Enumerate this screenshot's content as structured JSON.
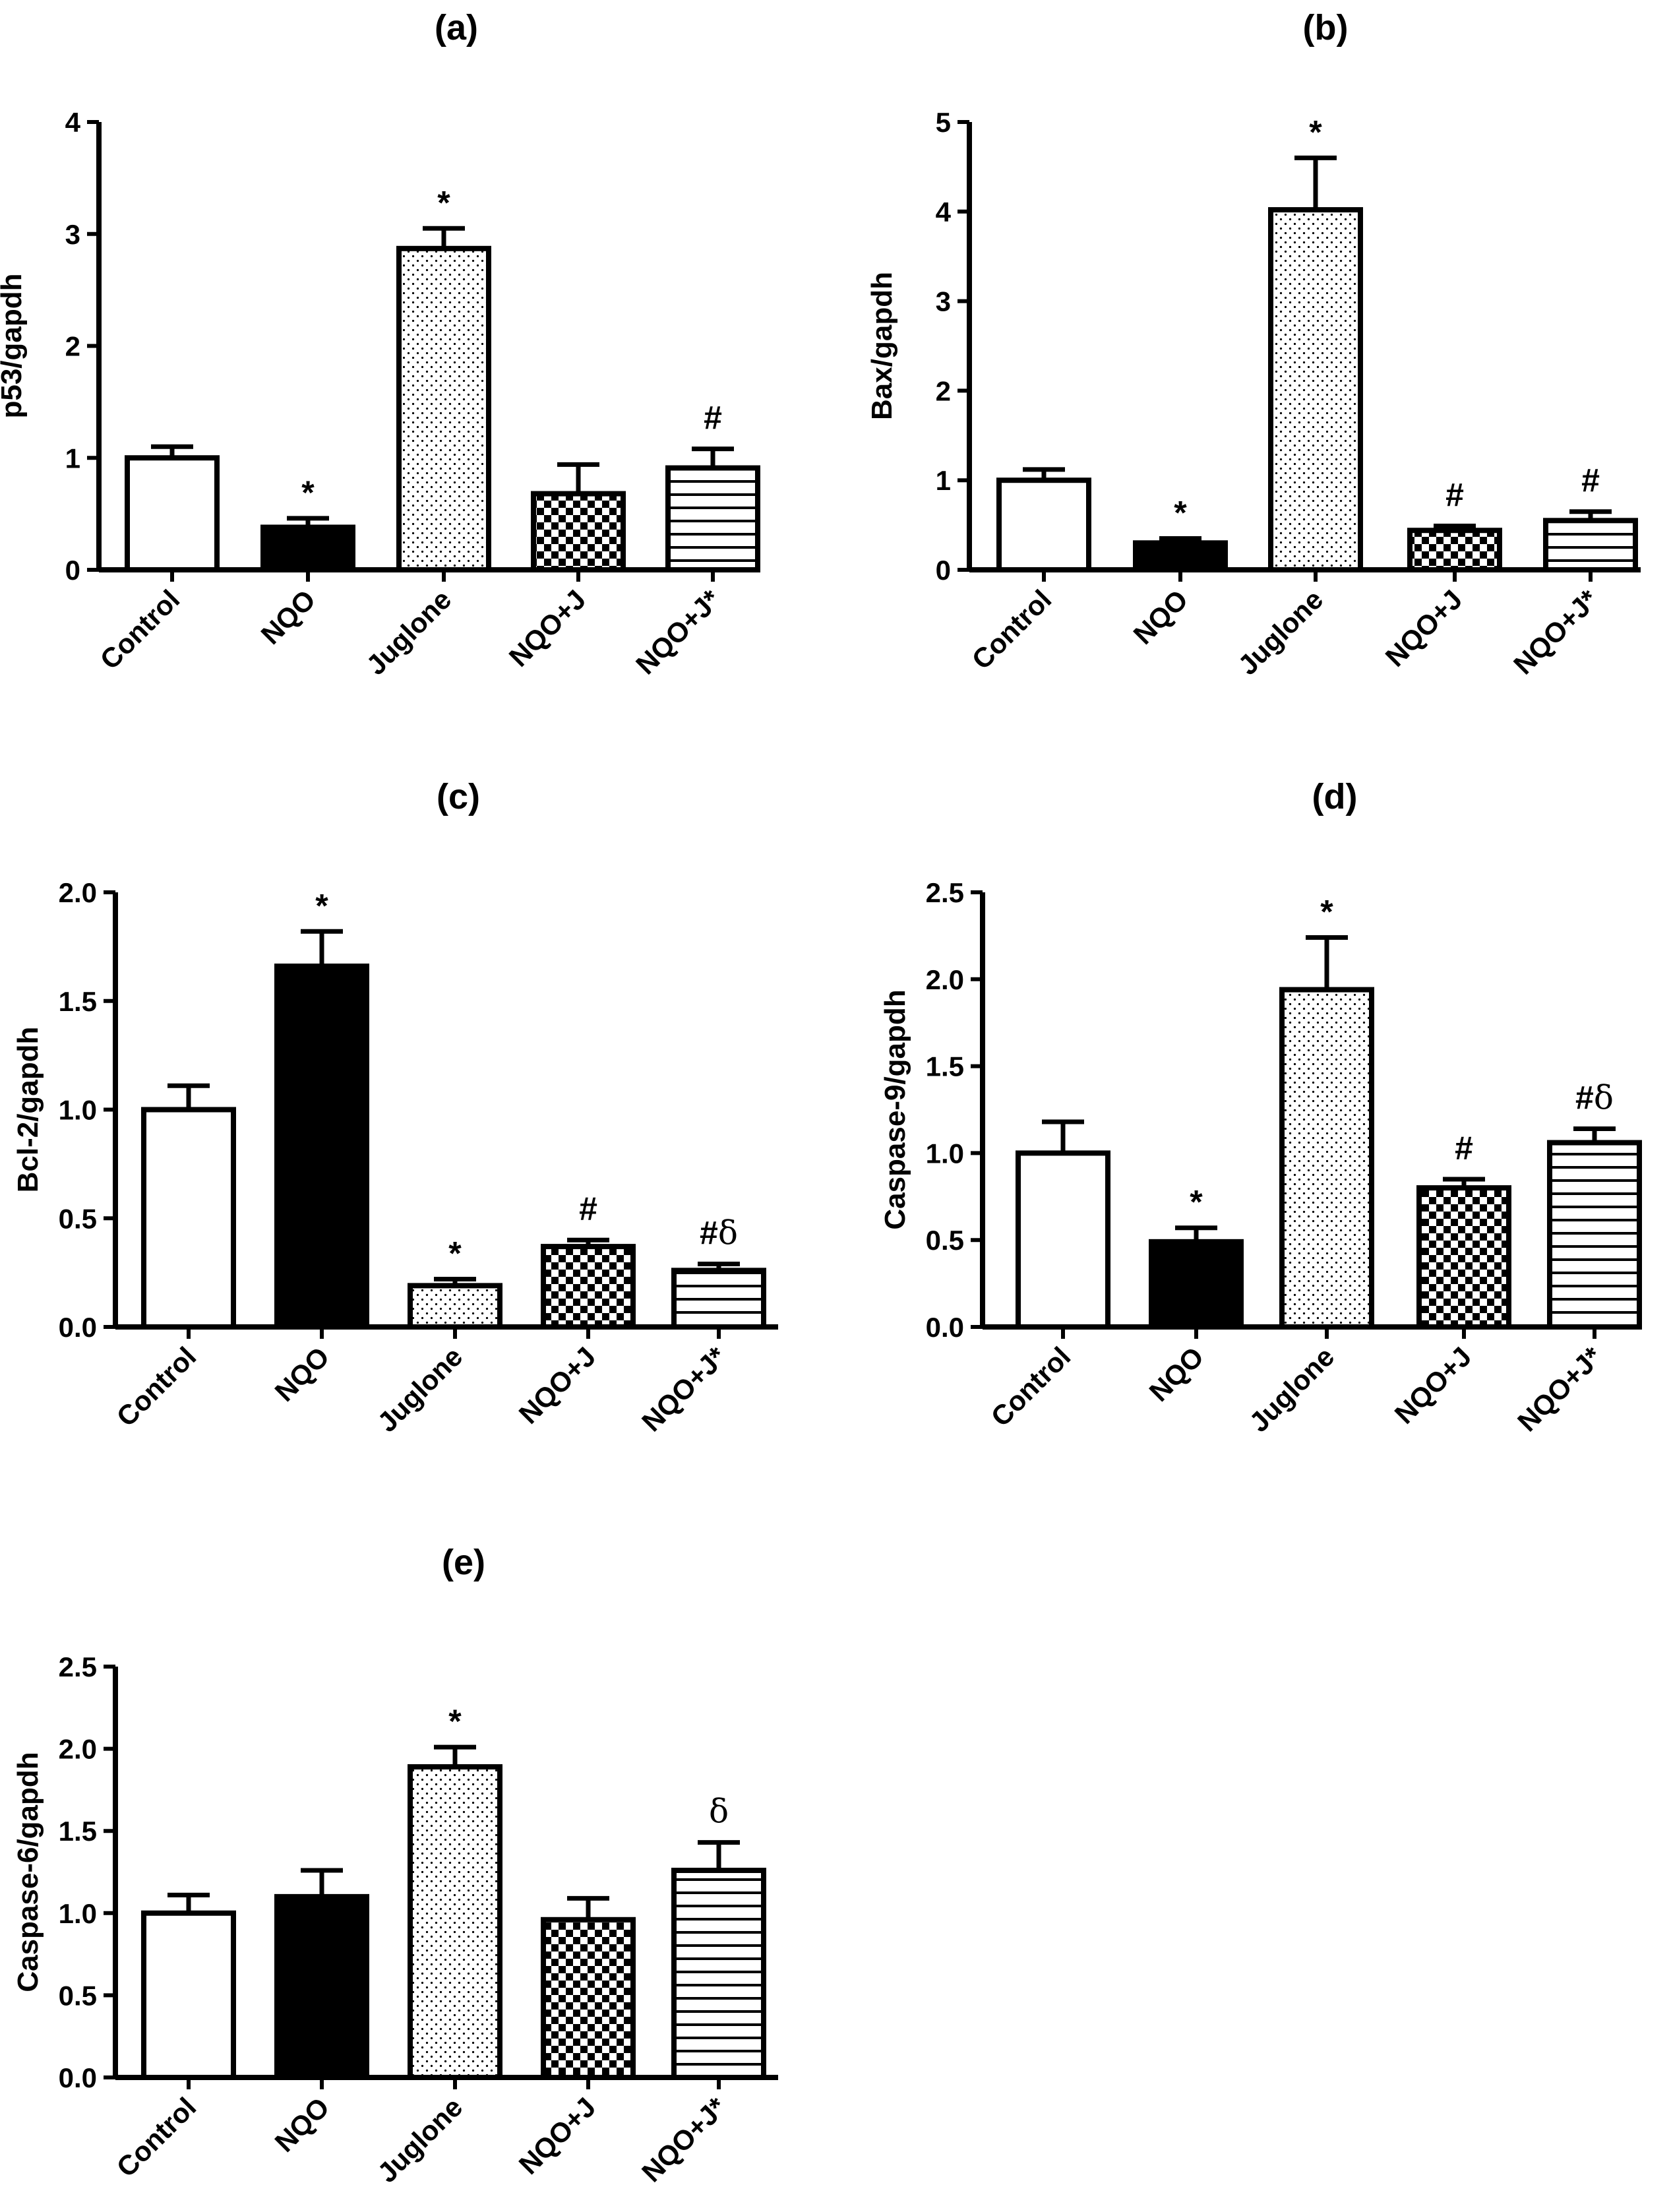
{
  "categories": [
    "Control",
    "NQO",
    "Juglone",
    "NQO+J",
    "NQO+J*"
  ],
  "chart_data": [
    {
      "type": "bar",
      "panel": "(a)",
      "title": "(a)",
      "ylabel": "p53/gapdh",
      "ylim": [
        0,
        4
      ],
      "yticks": [
        "0",
        "1",
        "2",
        "3",
        "4"
      ],
      "categories": [
        "Control",
        "NQO",
        "Juglone",
        "NQO+J",
        "NQO+J*"
      ],
      "values": [
        1.0,
        0.38,
        2.87,
        0.68,
        0.91
      ],
      "errors": [
        0.1,
        0.08,
        0.18,
        0.26,
        0.17
      ],
      "annotations": [
        "",
        "*",
        "*",
        "",
        "#"
      ]
    },
    {
      "type": "bar",
      "panel": "(b)",
      "title": "(b)",
      "ylabel": "Bax/gapdh",
      "ylim": [
        0,
        5
      ],
      "yticks": [
        "0",
        "1",
        "2",
        "3",
        "4",
        "5"
      ],
      "categories": [
        "Control",
        "NQO",
        "Juglone",
        "NQO+J",
        "NQO+J*"
      ],
      "values": [
        1.0,
        0.3,
        4.02,
        0.44,
        0.55
      ],
      "errors": [
        0.12,
        0.05,
        0.58,
        0.05,
        0.1
      ],
      "annotations": [
        "",
        "*",
        "*",
        "#",
        "#"
      ]
    },
    {
      "type": "bar",
      "panel": "(c)",
      "title": "(c)",
      "ylabel": "Bcl-2/gapdh",
      "ylim": [
        0,
        2.0
      ],
      "yticks": [
        "0.0",
        "0.5",
        "1.0",
        "1.5",
        "2.0"
      ],
      "categories": [
        "Control",
        "NQO",
        "Juglone",
        "NQO+J",
        "NQO+J*"
      ],
      "values": [
        1.0,
        1.66,
        0.19,
        0.37,
        0.26
      ],
      "errors": [
        0.11,
        0.16,
        0.03,
        0.03,
        0.03
      ],
      "annotations": [
        "",
        "*",
        "*",
        "#",
        "#δ"
      ]
    },
    {
      "type": "bar",
      "panel": "(d)",
      "title": "(d)",
      "ylabel": "Caspase-9/gapdh",
      "ylim": [
        0,
        2.5
      ],
      "yticks": [
        "0.0",
        "0.5",
        "1.0",
        "1.5",
        "2.0",
        "2.5"
      ],
      "categories": [
        "Control",
        "NQO",
        "Juglone",
        "NQO+J",
        "NQO+J*"
      ],
      "values": [
        1.0,
        0.49,
        1.94,
        0.8,
        1.06
      ],
      "errors": [
        0.18,
        0.08,
        0.3,
        0.05,
        0.08
      ],
      "annotations": [
        "",
        "*",
        "*",
        "#",
        "#δ"
      ]
    },
    {
      "type": "bar",
      "panel": "(e)",
      "title": "(e)",
      "ylabel": "Caspase-6/gapdh",
      "ylim": [
        0,
        2.5
      ],
      "yticks": [
        "0.0",
        "0.5",
        "1.0",
        "1.5",
        "2.0",
        "2.5"
      ],
      "categories": [
        "Control",
        "NQO",
        "Juglone",
        "NQO+J",
        "NQO+J*"
      ],
      "values": [
        1.0,
        1.1,
        1.89,
        0.96,
        1.26
      ],
      "errors": [
        0.11,
        0.16,
        0.12,
        0.13,
        0.17
      ],
      "annotations": [
        "",
        "",
        "*",
        "",
        "δ"
      ]
    }
  ],
  "bar_fills": [
    "white",
    "black",
    "dots",
    "checker",
    "hstripes"
  ]
}
